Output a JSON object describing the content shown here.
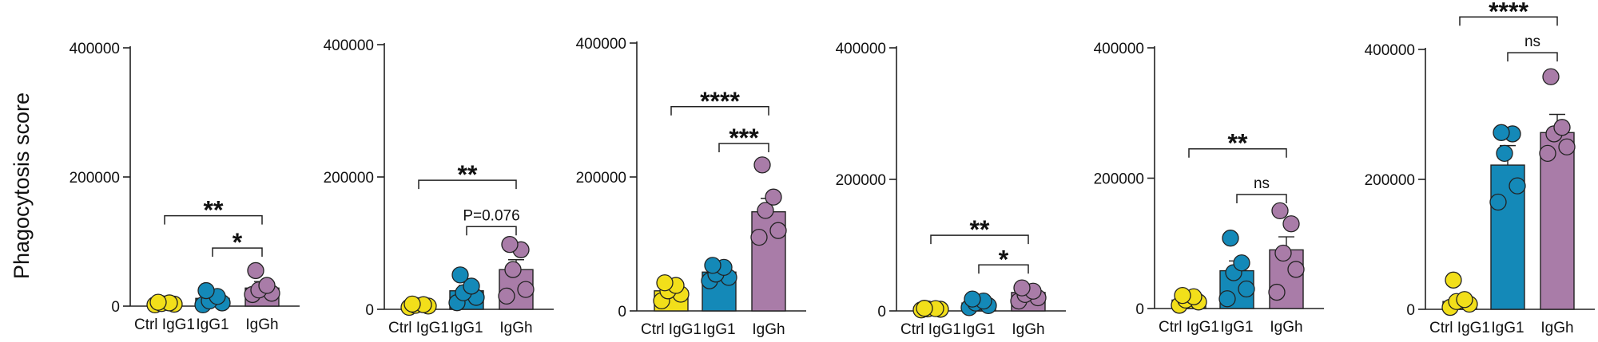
{
  "y_axis_title": "Phagocytosis score",
  "colors": {
    "ctrl": "#f2df1a",
    "igg1": "#1489b8",
    "iggh": "#a97ca8",
    "outline": "#222222"
  },
  "chart_data": [
    {
      "type": "bar",
      "categories": [
        "Ctrl IgG1",
        "IgG1",
        "IgGh"
      ],
      "ylim": [
        0,
        400000
      ],
      "yticks": [
        0,
        200000,
        400000
      ],
      "series": [
        {
          "values": [
            4000,
            12000,
            28000
          ]
        }
      ],
      "error": [
        1000,
        3000,
        10000
      ],
      "points": [
        [
          2000,
          3000,
          4000,
          5000,
          6000
        ],
        [
          2000,
          5000,
          8000,
          15000,
          24000
        ],
        [
          18000,
          20000,
          25000,
          32000,
          55000
        ]
      ],
      "significance": [
        {
          "from": 1,
          "to": 2,
          "label": "*",
          "y": 90000
        },
        {
          "from": 0,
          "to": 2,
          "label": "**",
          "y": 140000
        }
      ]
    },
    {
      "type": "bar",
      "categories": [
        "Ctrl IgG1",
        "IgG1",
        "IgGh"
      ],
      "ylim": [
        0,
        400000
      ],
      "yticks": [
        0,
        200000,
        400000
      ],
      "series": [
        {
          "values": [
            6000,
            28000,
            60000
          ]
        }
      ],
      "error": [
        1500,
        8000,
        15000
      ],
      "points": [
        [
          3000,
          5000,
          6000,
          7000,
          8000
        ],
        [
          10000,
          18000,
          25000,
          35000,
          52000
        ],
        [
          20000,
          30000,
          60000,
          90000,
          98000
        ]
      ],
      "significance": [
        {
          "from": 1,
          "to": 2,
          "label": "P=0.076",
          "y": 125000
        },
        {
          "from": 0,
          "to": 2,
          "label": "**",
          "y": 195000
        }
      ]
    },
    {
      "type": "bar",
      "categories": [
        "Ctrl IgG1",
        "IgG1",
        "IgGh"
      ],
      "ylim": [
        0,
        400000
      ],
      "yticks": [
        0,
        200000,
        400000
      ],
      "series": [
        {
          "values": [
            30000,
            58000,
            148000
          ]
        }
      ],
      "error": [
        8000,
        8000,
        20000
      ],
      "points": [
        [
          15000,
          25000,
          30000,
          38000,
          42000
        ],
        [
          45000,
          50000,
          55000,
          65000,
          68000
        ],
        [
          110000,
          120000,
          150000,
          170000,
          218000
        ]
      ],
      "significance": [
        {
          "from": 1,
          "to": 2,
          "label": "***",
          "y": 250000
        },
        {
          "from": 0,
          "to": 2,
          "label": "****",
          "y": 305000
        }
      ]
    },
    {
      "type": "bar",
      "categories": [
        "Ctrl IgG1",
        "IgG1",
        "IgGh"
      ],
      "ylim": [
        0,
        400000
      ],
      "yticks": [
        0,
        200000,
        400000
      ],
      "series": [
        {
          "values": [
            3000,
            12000,
            28000
          ]
        }
      ],
      "error": [
        800,
        2500,
        6000
      ],
      "points": [
        [
          1500,
          2500,
          3000,
          3500,
          4000
        ],
        [
          5000,
          8000,
          12000,
          15000,
          18000
        ],
        [
          15000,
          20000,
          25000,
          30000,
          35000
        ]
      ],
      "significance": [
        {
          "from": 1,
          "to": 2,
          "label": "*",
          "y": 70000
        },
        {
          "from": 0,
          "to": 2,
          "label": "**",
          "y": 115000
        }
      ]
    },
    {
      "type": "bar",
      "categories": [
        "Ctrl IgG1",
        "IgG1",
        "IgGh"
      ],
      "ylim": [
        0,
        400000
      ],
      "yticks": [
        0,
        200000,
        400000
      ],
      "series": [
        {
          "values": [
            13000,
            58000,
            90000
          ]
        }
      ],
      "error": [
        3000,
        15000,
        20000
      ],
      "points": [
        [
          5000,
          10000,
          13000,
          18000,
          20000
        ],
        [
          15000,
          30000,
          55000,
          70000,
          108000
        ],
        [
          25000,
          60000,
          85000,
          130000,
          150000
        ]
      ],
      "significance": [
        {
          "from": 1,
          "to": 2,
          "label": "ns",
          "y": 175000
        },
        {
          "from": 0,
          "to": 2,
          "label": "**",
          "y": 245000
        }
      ]
    },
    {
      "type": "bar",
      "categories": [
        "Ctrl IgG1",
        "IgG1",
        "IgGh"
      ],
      "ylim": [
        0,
        400000
      ],
      "yticks": [
        0,
        200000,
        400000
      ],
      "series": [
        {
          "values": [
            12000,
            222000,
            272000
          ]
        }
      ],
      "error": [
        10000,
        30000,
        28000
      ],
      "points": [
        [
          3000,
          8000,
          12000,
          15000,
          45000
        ],
        [
          165000,
          190000,
          240000,
          270000,
          272000
        ],
        [
          240000,
          250000,
          270000,
          280000,
          358000
        ]
      ],
      "significance": [
        {
          "from": 1,
          "to": 2,
          "label": "ns",
          "y": 395000
        },
        {
          "from": 0,
          "to": 2,
          "label": "****",
          "y": 450000
        }
      ]
    }
  ]
}
